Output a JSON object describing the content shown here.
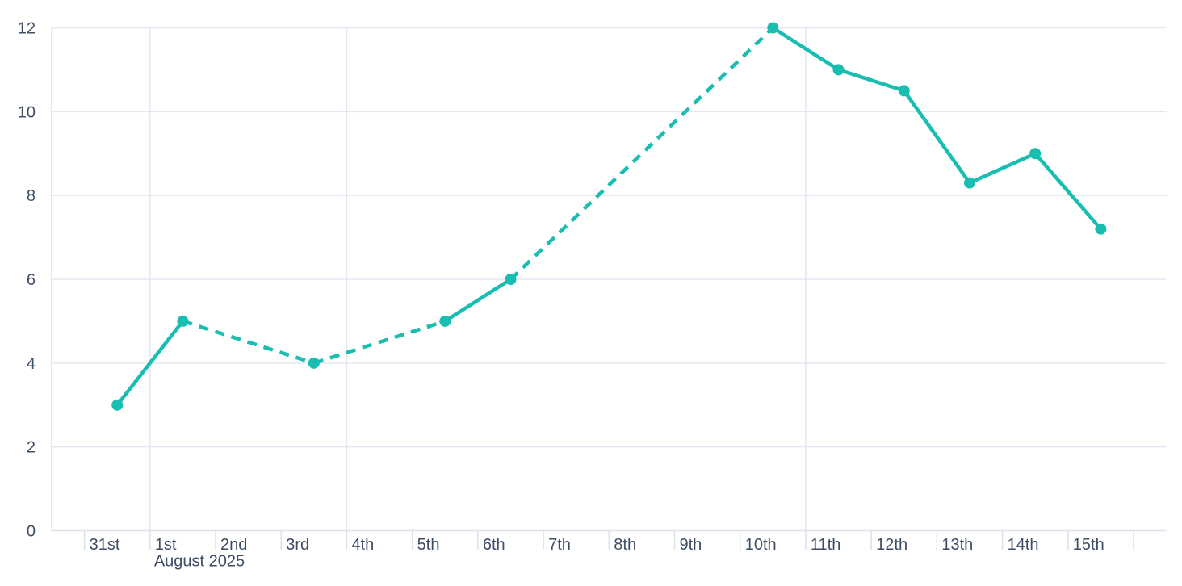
{
  "page": {
    "background": "#ffffff"
  },
  "chart_data": {
    "type": "line",
    "title": "",
    "legend": "none",
    "x_axis": {
      "kind": "datetime-days",
      "tick_labels": [
        "31st",
        "1st",
        "2nd",
        "3rd",
        "4th",
        "5th",
        "6th",
        "7th",
        "8th",
        "9th",
        "10th",
        "11th",
        "12th",
        "13th",
        "14th",
        "15th",
        ""
      ],
      "month_label": "August 2025",
      "month_label_tick_index": 1,
      "vertical_gridline_tick_indices": [
        1,
        4,
        11
      ],
      "range_days": [
        -0.5,
        16.5
      ]
    },
    "y_axis": {
      "tick_values": [
        0,
        2,
        4,
        6,
        8,
        10,
        12
      ],
      "tick_labels": [
        "0",
        "2",
        "4",
        "6",
        "8",
        "10",
        "12"
      ],
      "range": [
        0,
        12
      ]
    },
    "series": [
      {
        "name": "daily-values",
        "color": "#19bdb2",
        "marker_radius": 7,
        "line_width": 4.5,
        "dash_pattern": "12 9",
        "dashed_when_day_gap_gt": 1,
        "points": [
          {
            "x_label": "31st",
            "day": 0,
            "value": 3
          },
          {
            "x_label": "1st",
            "day": 1,
            "value": 5
          },
          {
            "x_label": "3rd",
            "day": 3,
            "value": 4
          },
          {
            "x_label": "5th",
            "day": 5,
            "value": 5
          },
          {
            "x_label": "6th",
            "day": 6,
            "value": 6
          },
          {
            "x_label": "10th",
            "day": 10,
            "value": 12
          },
          {
            "x_label": "11th",
            "day": 11,
            "value": 11
          },
          {
            "x_label": "12th",
            "day": 12,
            "value": 10.5
          },
          {
            "x_label": "13th",
            "day": 13,
            "value": 8.3
          },
          {
            "x_label": "14th",
            "day": 14,
            "value": 9
          },
          {
            "x_label": "15th",
            "day": 15,
            "value": 7.2
          }
        ]
      }
    ],
    "grid": {
      "horizontal": true,
      "vertical": "week-and-month-boundaries"
    },
    "colors": {
      "line": "#19bdb2",
      "gridline": "#e3e7f1",
      "axis": "#dbe0ec",
      "label_text": "#3f4e67",
      "background": "#ffffff"
    }
  }
}
